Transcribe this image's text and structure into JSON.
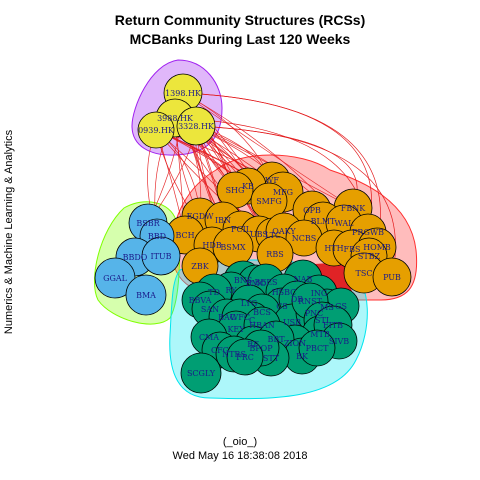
{
  "title_line1": "Return Community Structures (RCSs)",
  "title_line2": "MCBanks During Last 120 Weeks",
  "side_label": "Numerics & Machine Learning & Analytics",
  "footer_line1": "(_oio_)",
  "footer_line2": "Wed May 16 18:38:08 2018",
  "colors": {
    "yellow_group_node": "#ece63c",
    "yellow_group_hull": "#a020f0",
    "orange_group_node": "#e69f00",
    "orange_group_hull": "#ff3030",
    "blue_group_node": "#56b4e9",
    "blue_group_hull": "#7fff00",
    "green_group_node": "#009e73",
    "green_group_hull": "#00e5ee",
    "edge": "#e31a1c"
  },
  "groups": [
    {
      "name": "yellow",
      "nodes": [
        "1398.HK",
        "3988.HK",
        "3328.HK",
        "0939.HK"
      ]
    },
    {
      "name": "orange",
      "nodes": [
        "WF",
        "KB",
        "SHG",
        "MFG",
        "SMFG",
        "OPB",
        "FBNK",
        "EGDW",
        "IBN",
        "BCH",
        "FCIL",
        "UBS",
        "LTC",
        "OAKY",
        "BLMT",
        "WAL",
        "PRGWB",
        "HDB",
        "BSMX",
        "NCBS",
        "HTH",
        "FBS",
        "HOMB",
        "STBZ",
        "ZBK",
        "RBS",
        "TSC",
        "PUB"
      ]
    },
    {
      "name": "blue",
      "nodes": [
        "BSBR",
        "BBD",
        "BBDO",
        "ITUB",
        "GGAL",
        "BMA"
      ]
    },
    {
      "name": "green",
      "nodes": [
        "BNS",
        "BMO",
        "BEES",
        "RY",
        "NAB",
        "TD",
        "HSBC",
        "ING",
        "BBVA",
        "SAN",
        "LYG",
        "CS",
        "DB",
        "BCS",
        "MS",
        "GS",
        "C",
        "BAC",
        "WFC",
        "USB",
        "PNC",
        "RNST",
        "STI",
        "KEY",
        "HBAN",
        "MTB",
        "FITB",
        "CMA",
        "ZION",
        "RF",
        "CFG",
        "SCGLY",
        "BBT",
        "BK",
        "STT",
        "NTRS",
        "SIVB",
        "PBCT",
        "BPOP",
        "FRC"
      ]
    }
  ]
}
